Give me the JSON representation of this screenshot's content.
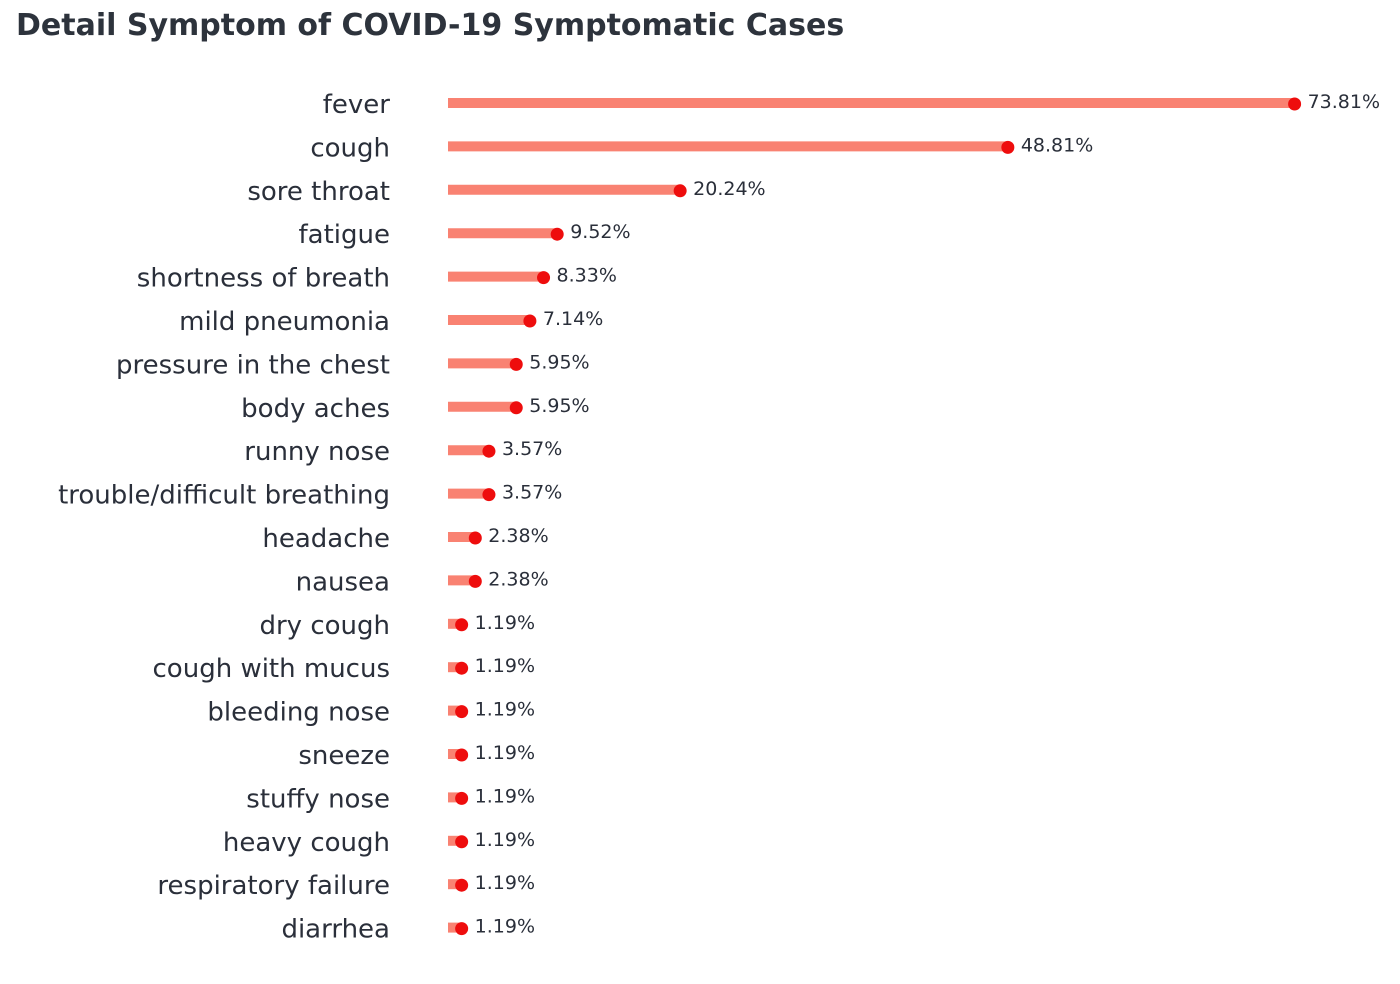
{
  "colors": {
    "stem": "#f98272",
    "dot": "#ee0d0d",
    "text": "#2a2f3a",
    "title": "#2d333c"
  },
  "chart_data": {
    "type": "bar",
    "orientation": "horizontal",
    "style": "lollipop",
    "title": "Detail Symptom of COVID-19 Symptomatic Cases",
    "xlabel": "",
    "ylabel": "",
    "grid": false,
    "legend": "none",
    "xlim": [
      0,
      75
    ],
    "categories": [
      "fever",
      "cough",
      "sore throat",
      "fatigue",
      "shortness of breath",
      "mild pneumonia",
      "pressure in the chest",
      "body aches",
      "runny nose",
      "trouble/difficult breathing",
      "headache",
      "nausea",
      "dry cough",
      "cough with mucus",
      "bleeding nose",
      "sneeze",
      "stuffy nose",
      "heavy cough",
      "respiratory failure",
      "diarrhea"
    ],
    "values": [
      73.81,
      48.81,
      20.24,
      9.52,
      8.33,
      7.14,
      5.95,
      5.95,
      3.57,
      3.57,
      2.38,
      2.38,
      1.19,
      1.19,
      1.19,
      1.19,
      1.19,
      1.19,
      1.19,
      1.19
    ],
    "value_labels": [
      "73.81%",
      "48.81%",
      "20.24%",
      "9.52%",
      "8.33%",
      "7.14%",
      "5.95%",
      "5.95%",
      "3.57%",
      "3.57%",
      "2.38%",
      "2.38%",
      "1.19%",
      "1.19%",
      "1.19%",
      "1.19%",
      "1.19%",
      "1.19%",
      "1.19%",
      "1.19%"
    ]
  }
}
